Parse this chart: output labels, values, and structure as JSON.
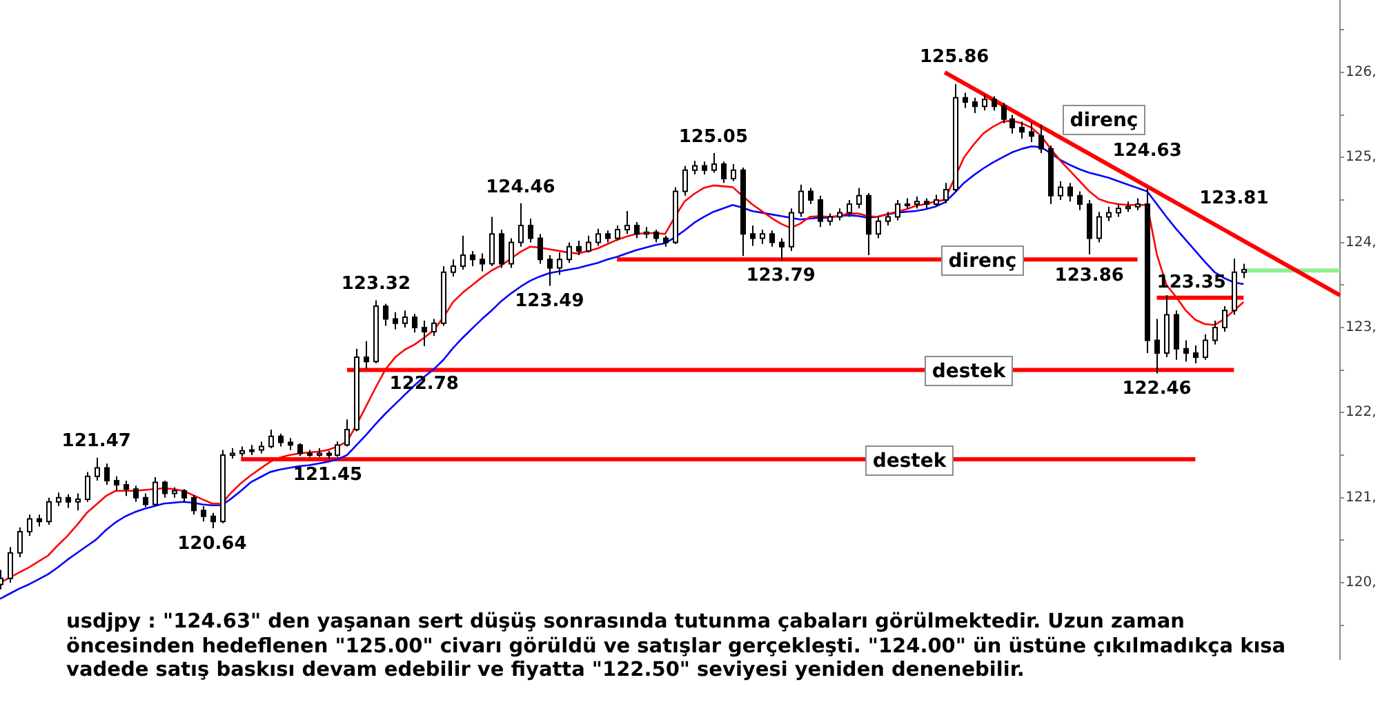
{
  "chart_data": {
    "type": "candlestick",
    "categories": [
      null,
      null,
      null,
      null,
      null,
      null,
      null,
      null,
      null,
      null,
      null,
      null,
      null,
      null,
      null,
      null,
      null,
      null,
      null,
      null,
      null,
      null,
      null,
      null,
      null,
      null,
      null,
      null,
      null,
      null,
      null,
      null,
      null,
      null,
      null,
      null,
      null,
      null,
      null,
      null,
      null,
      null,
      null,
      null,
      null,
      null,
      null,
      null,
      null,
      null,
      null,
      null,
      null,
      null,
      null,
      null,
      null,
      null,
      null,
      null,
      null,
      null,
      null,
      null,
      null,
      null,
      null,
      null,
      null,
      null,
      null,
      null,
      null,
      null,
      null,
      null,
      null,
      null,
      null,
      null,
      null,
      null,
      null,
      null,
      null,
      null,
      null,
      null,
      null,
      null,
      null,
      null,
      null,
      null,
      null,
      null,
      null,
      null,
      null,
      null,
      null,
      null,
      null,
      null,
      null,
      null,
      null,
      null,
      null,
      null,
      null,
      null,
      null,
      null,
      null,
      null,
      null,
      null,
      null,
      null,
      null,
      null,
      null,
      null,
      null,
      null,
      null,
      null,
      null,
      null,
      null,
      null,
      null,
      null,
      null,
      null,
      null,
      null,
      null,
      null
    ],
    "ohlc": [
      [
        119.98,
        120.15,
        119.92,
        120.05
      ],
      [
        120.05,
        120.42,
        120.0,
        120.35
      ],
      [
        120.35,
        120.65,
        120.3,
        120.6
      ],
      [
        120.6,
        120.8,
        120.55,
        120.75
      ],
      [
        120.75,
        120.8,
        120.66,
        120.72
      ],
      [
        120.72,
        121.0,
        120.68,
        120.95
      ],
      [
        120.95,
        121.06,
        120.9,
        121.0
      ],
      [
        121.0,
        121.04,
        120.88,
        120.95
      ],
      [
        120.95,
        121.05,
        120.85,
        120.98
      ],
      [
        120.98,
        121.3,
        120.95,
        121.25
      ],
      [
        121.25,
        121.47,
        121.2,
        121.35
      ],
      [
        121.35,
        121.4,
        121.15,
        121.2
      ],
      [
        121.2,
        121.25,
        121.08,
        121.15
      ],
      [
        121.15,
        121.2,
        121.02,
        121.1
      ],
      [
        121.1,
        121.14,
        120.95,
        121.0
      ],
      [
        121.0,
        121.05,
        120.89,
        120.92
      ],
      [
        120.92,
        121.24,
        120.9,
        121.18
      ],
      [
        121.18,
        121.2,
        121.0,
        121.05
      ],
      [
        121.05,
        121.12,
        121.0,
        121.08
      ],
      [
        121.08,
        121.1,
        120.95,
        121.0
      ],
      [
        121.0,
        121.03,
        120.8,
        120.85
      ],
      [
        120.85,
        120.9,
        120.72,
        120.78
      ],
      [
        120.78,
        120.82,
        120.64,
        120.72
      ],
      [
        120.72,
        121.56,
        120.7,
        121.5
      ],
      [
        121.5,
        121.58,
        121.46,
        121.52
      ],
      [
        121.52,
        121.6,
        121.48,
        121.55
      ],
      [
        121.55,
        121.62,
        121.5,
        121.56
      ],
      [
        121.56,
        121.66,
        121.52,
        121.6
      ],
      [
        121.6,
        121.8,
        121.58,
        121.72
      ],
      [
        121.72,
        121.75,
        121.6,
        121.65
      ],
      [
        121.65,
        121.7,
        121.56,
        121.62
      ],
      [
        121.62,
        121.64,
        121.49,
        121.52
      ],
      [
        121.52,
        121.56,
        121.48,
        121.5
      ],
      [
        121.5,
        121.58,
        121.48,
        121.52
      ],
      [
        121.52,
        121.55,
        121.45,
        121.5
      ],
      [
        121.5,
        121.66,
        121.48,
        121.62
      ],
      [
        121.62,
        121.92,
        121.6,
        121.8
      ],
      [
        121.8,
        122.75,
        121.78,
        122.65
      ],
      [
        122.65,
        122.84,
        122.52,
        122.6
      ],
      [
        122.6,
        123.32,
        122.58,
        123.25
      ],
      [
        123.25,
        123.28,
        123.02,
        123.1
      ],
      [
        123.1,
        123.18,
        122.98,
        123.05
      ],
      [
        123.05,
        123.2,
        123.0,
        123.12
      ],
      [
        123.12,
        123.16,
        122.94,
        123.0
      ],
      [
        123.0,
        123.08,
        122.78,
        122.95
      ],
      [
        122.95,
        123.1,
        122.9,
        123.05
      ],
      [
        123.05,
        123.72,
        123.02,
        123.65
      ],
      [
        123.65,
        123.8,
        123.6,
        123.72
      ],
      [
        123.72,
        124.08,
        123.68,
        123.85
      ],
      [
        123.85,
        123.9,
        123.72,
        123.8
      ],
      [
        123.8,
        123.87,
        123.66,
        123.75
      ],
      [
        123.75,
        124.3,
        123.72,
        124.1
      ],
      [
        124.1,
        124.15,
        123.7,
        123.75
      ],
      [
        123.75,
        124.05,
        123.7,
        124.0
      ],
      [
        124.0,
        124.46,
        123.95,
        124.2
      ],
      [
        124.2,
        124.28,
        124.0,
        124.05
      ],
      [
        124.05,
        124.1,
        123.75,
        123.8
      ],
      [
        123.8,
        123.85,
        123.49,
        123.7
      ],
      [
        123.7,
        123.88,
        123.62,
        123.8
      ],
      [
        123.8,
        124.0,
        123.76,
        123.95
      ],
      [
        123.95,
        124.02,
        123.85,
        123.9
      ],
      [
        123.9,
        124.08,
        123.88,
        124.0
      ],
      [
        124.0,
        124.16,
        123.96,
        124.1
      ],
      [
        124.1,
        124.14,
        124.0,
        124.05
      ],
      [
        124.05,
        124.2,
        124.02,
        124.15
      ],
      [
        124.15,
        124.37,
        124.1,
        124.2
      ],
      [
        124.2,
        124.24,
        124.05,
        124.1
      ],
      [
        124.1,
        124.18,
        124.05,
        124.12
      ],
      [
        124.12,
        124.15,
        124.0,
        124.05
      ],
      [
        124.05,
        124.08,
        123.95,
        124.0
      ],
      [
        124.0,
        124.65,
        123.98,
        124.6
      ],
      [
        124.6,
        124.9,
        124.55,
        124.85
      ],
      [
        124.85,
        124.96,
        124.8,
        124.9
      ],
      [
        124.9,
        124.95,
        124.8,
        124.85
      ],
      [
        124.85,
        125.05,
        124.82,
        124.92
      ],
      [
        124.92,
        124.95,
        124.7,
        124.75
      ],
      [
        124.75,
        124.92,
        124.72,
        124.85
      ],
      [
        124.85,
        124.88,
        123.84,
        124.1
      ],
      [
        124.1,
        124.2,
        123.96,
        124.05
      ],
      [
        124.05,
        124.15,
        123.98,
        124.1
      ],
      [
        124.1,
        124.14,
        123.95,
        124.0
      ],
      [
        124.0,
        124.05,
        123.79,
        123.95
      ],
      [
        123.95,
        124.4,
        123.9,
        124.35
      ],
      [
        124.35,
        124.68,
        124.3,
        124.6
      ],
      [
        124.6,
        124.64,
        124.45,
        124.5
      ],
      [
        124.5,
        124.55,
        124.18,
        124.25
      ],
      [
        124.25,
        124.34,
        124.2,
        124.3
      ],
      [
        124.3,
        124.4,
        124.26,
        124.35
      ],
      [
        124.35,
        124.5,
        124.3,
        124.45
      ],
      [
        124.45,
        124.64,
        124.4,
        124.55
      ],
      [
        124.55,
        124.58,
        123.85,
        124.1
      ],
      [
        124.1,
        124.3,
        124.05,
        124.25
      ],
      [
        124.25,
        124.36,
        124.2,
        124.3
      ],
      [
        124.3,
        124.5,
        124.26,
        124.45
      ],
      [
        124.45,
        124.52,
        124.4,
        124.45
      ],
      [
        124.45,
        124.54,
        124.4,
        124.48
      ],
      [
        124.48,
        124.52,
        124.4,
        124.45
      ],
      [
        124.45,
        124.56,
        124.42,
        124.5
      ],
      [
        124.5,
        124.7,
        124.46,
        124.62
      ],
      [
        124.62,
        125.86,
        124.6,
        125.7
      ],
      [
        125.7,
        125.76,
        125.58,
        125.65
      ],
      [
        125.65,
        125.7,
        125.52,
        125.6
      ],
      [
        125.6,
        125.74,
        125.55,
        125.68
      ],
      [
        125.68,
        125.72,
        125.55,
        125.6
      ],
      [
        125.6,
        125.64,
        125.4,
        125.45
      ],
      [
        125.45,
        125.5,
        125.28,
        125.35
      ],
      [
        125.35,
        125.42,
        125.22,
        125.3
      ],
      [
        125.3,
        125.4,
        125.18,
        125.25
      ],
      [
        125.25,
        125.38,
        125.05,
        125.1
      ],
      [
        125.1,
        125.14,
        124.45,
        124.55
      ],
      [
        124.55,
        124.72,
        124.5,
        124.65
      ],
      [
        124.65,
        124.7,
        124.48,
        124.55
      ],
      [
        124.55,
        124.6,
        124.38,
        124.45
      ],
      [
        124.45,
        124.5,
        123.86,
        124.05
      ],
      [
        124.05,
        124.36,
        124.0,
        124.3
      ],
      [
        124.3,
        124.42,
        124.25,
        124.35
      ],
      [
        124.35,
        124.45,
        124.3,
        124.4
      ],
      [
        124.4,
        124.48,
        124.36,
        124.42
      ],
      [
        124.42,
        124.52,
        124.38,
        124.45
      ],
      [
        124.45,
        124.63,
        122.7,
        122.85
      ],
      [
        122.85,
        123.1,
        122.46,
        122.7
      ],
      [
        122.7,
        123.38,
        122.65,
        123.15
      ],
      [
        123.15,
        123.2,
        122.62,
        122.75
      ],
      [
        122.75,
        122.85,
        122.6,
        122.7
      ],
      [
        122.7,
        122.79,
        122.58,
        122.65
      ],
      [
        122.65,
        122.92,
        122.62,
        122.85
      ],
      [
        122.85,
        123.08,
        122.8,
        123.0
      ],
      [
        123.0,
        123.25,
        122.95,
        123.2
      ],
      [
        123.2,
        123.81,
        123.15,
        123.65
      ],
      [
        123.65,
        123.75,
        123.58,
        123.68
      ],
      null,
      null,
      null,
      null,
      null,
      null,
      null,
      null,
      null,
      null
    ],
    "series": [
      {
        "type": "line",
        "color": "#ff0000",
        "values": [
          120.0,
          120.06,
          120.12,
          120.18,
          120.25,
          120.32,
          120.44,
          120.55,
          120.68,
          120.82,
          120.92,
          121.02,
          121.08,
          121.08,
          121.08,
          121.09,
          121.1,
          121.11,
          121.1,
          121.08,
          121.03,
          120.98,
          120.93,
          120.93,
          121.06,
          121.17,
          121.26,
          121.34,
          121.42,
          121.47,
          121.5,
          121.52,
          121.53,
          121.54,
          121.56,
          121.6,
          121.66,
          121.86,
          122.08,
          122.3,
          122.51,
          122.65,
          122.74,
          122.8,
          122.88,
          122.97,
          123.12,
          123.3,
          123.41,
          123.5,
          123.59,
          123.67,
          123.73,
          123.81,
          123.89,
          123.95,
          123.94,
          123.92,
          123.9,
          123.88,
          123.87,
          123.9,
          123.93,
          123.98,
          124.03,
          124.07,
          124.1,
          124.11,
          124.11,
          124.1,
          124.3,
          124.48,
          124.57,
          124.64,
          124.67,
          124.66,
          124.65,
          124.55,
          124.45,
          124.37,
          124.29,
          124.22,
          124.17,
          124.22,
          124.3,
          124.31,
          124.3,
          124.31,
          124.34,
          124.34,
          124.31,
          124.3,
          124.33,
          124.36,
          124.39,
          124.43,
          124.45,
          124.48,
          124.5,
          124.75,
          125.0,
          125.15,
          125.28,
          125.36,
          125.42,
          125.43,
          125.4,
          125.35,
          125.25,
          125.1,
          124.96,
          124.84,
          124.72,
          124.6,
          124.51,
          124.47,
          124.45,
          124.44,
          124.44,
          124.44,
          123.86,
          123.5,
          123.36,
          123.2,
          123.09,
          123.04,
          123.03,
          123.1,
          123.2,
          123.3,
          null,
          null,
          null,
          null,
          null,
          null,
          null,
          null,
          null,
          null
        ]
      },
      {
        "type": "line",
        "color": "#0000ff",
        "values": [
          119.81,
          119.87,
          119.93,
          119.98,
          120.04,
          120.1,
          120.18,
          120.27,
          120.35,
          120.43,
          120.51,
          120.62,
          120.71,
          120.78,
          120.83,
          120.87,
          120.9,
          120.93,
          120.94,
          120.95,
          120.94,
          120.92,
          120.91,
          120.91,
          120.99,
          121.08,
          121.18,
          121.24,
          121.3,
          121.33,
          121.35,
          121.37,
          121.38,
          121.4,
          121.42,
          121.45,
          121.5,
          121.62,
          121.74,
          121.87,
          121.99,
          122.1,
          122.21,
          122.32,
          122.42,
          122.51,
          122.62,
          122.76,
          122.88,
          122.99,
          123.1,
          123.2,
          123.31,
          123.4,
          123.48,
          123.55,
          123.6,
          123.64,
          123.66,
          123.68,
          123.7,
          123.73,
          123.76,
          123.8,
          123.83,
          123.87,
          123.91,
          123.94,
          123.97,
          123.99,
          124.06,
          124.14,
          124.23,
          124.3,
          124.36,
          124.4,
          124.44,
          124.41,
          124.37,
          124.35,
          124.33,
          124.31,
          124.29,
          124.27,
          124.28,
          124.29,
          124.29,
          124.31,
          124.32,
          124.31,
          124.29,
          124.3,
          124.33,
          124.35,
          124.36,
          124.37,
          124.39,
          124.42,
          124.47,
          124.58,
          124.7,
          124.79,
          124.87,
          124.94,
          125.0,
          125.06,
          125.1,
          125.13,
          125.12,
          125.05,
          124.97,
          124.91,
          124.86,
          124.82,
          124.79,
          124.76,
          124.72,
          124.68,
          124.64,
          124.6,
          124.45,
          124.3,
          124.16,
          124.03,
          123.9,
          123.77,
          123.65,
          123.58,
          123.53,
          123.51,
          null,
          null,
          null,
          null,
          null,
          null,
          null,
          null,
          null,
          null
        ]
      },
      {
        "type": "line",
        "name": "direnç",
        "color": "#ff0000",
        "values": [
          null,
          null,
          null,
          null,
          null,
          null,
          null,
          null,
          null,
          null,
          null,
          null,
          null,
          null,
          null,
          null,
          null,
          null,
          null,
          null,
          null,
          null,
          null,
          null,
          null,
          null,
          null,
          null,
          null,
          null,
          null,
          null,
          null,
          null,
          null,
          null,
          null,
          null,
          null,
          null,
          null,
          null,
          null,
          null,
          null,
          null,
          null,
          null,
          null,
          null,
          null,
          null,
          null,
          null,
          null,
          null,
          null,
          null,
          null,
          null,
          null,
          null,
          null,
          null,
          123.8,
          null,
          null,
          null,
          null,
          null,
          null,
          null,
          null,
          null,
          null,
          null,
          null,
          null,
          null,
          null,
          null,
          null,
          null,
          null,
          null,
          null,
          null,
          null,
          null,
          null,
          null,
          null,
          null,
          null,
          null,
          null,
          null,
          null,
          null,
          null,
          null,
          null,
          null,
          null,
          null,
          null,
          null,
          null,
          null,
          null,
          null,
          null,
          null,
          null,
          null,
          null,
          null,
          null,
          123.8,
          null,
          null,
          null,
          null,
          null,
          null,
          null,
          null,
          null,
          null,
          null,
          null,
          null,
          null,
          null,
          null,
          null,
          null,
          null,
          null,
          null
        ]
      },
      {
        "type": "line",
        "name": "destek",
        "color": "#ff0000",
        "values": [
          null,
          null,
          null,
          null,
          null,
          null,
          null,
          null,
          null,
          null,
          null,
          null,
          null,
          null,
          null,
          null,
          null,
          null,
          null,
          null,
          null,
          null,
          null,
          null,
          null,
          null,
          null,
          null,
          null,
          null,
          null,
          null,
          null,
          null,
          null,
          null,
          122.5,
          null,
          null,
          null,
          null,
          null,
          null,
          null,
          null,
          null,
          null,
          null,
          null,
          null,
          null,
          null,
          null,
          null,
          null,
          null,
          null,
          null,
          null,
          null,
          null,
          null,
          null,
          null,
          null,
          null,
          null,
          null,
          null,
          null,
          null,
          null,
          null,
          null,
          null,
          null,
          null,
          null,
          null,
          null,
          null,
          null,
          null,
          null,
          null,
          null,
          null,
          null,
          null,
          null,
          null,
          null,
          null,
          null,
          null,
          null,
          null,
          null,
          null,
          null,
          null,
          null,
          null,
          null,
          null,
          null,
          null,
          null,
          null,
          null,
          null,
          null,
          null,
          null,
          null,
          null,
          null,
          null,
          null,
          null,
          null,
          null,
          null,
          null,
          null,
          null,
          null,
          null,
          122.5,
          null,
          null,
          null,
          null,
          null,
          null,
          null,
          null,
          null,
          null,
          null
        ]
      },
      {
        "type": "line",
        "name": "destek",
        "color": "#ff0000",
        "values": [
          null,
          null,
          null,
          null,
          null,
          null,
          null,
          null,
          null,
          null,
          null,
          null,
          null,
          null,
          null,
          null,
          null,
          null,
          null,
          null,
          null,
          null,
          null,
          null,
          null,
          121.45,
          null,
          null,
          null,
          null,
          null,
          null,
          null,
          null,
          null,
          null,
          null,
          null,
          null,
          null,
          null,
          null,
          null,
          null,
          null,
          null,
          null,
          null,
          null,
          null,
          null,
          null,
          null,
          null,
          null,
          null,
          null,
          null,
          null,
          null,
          null,
          null,
          null,
          null,
          null,
          null,
          null,
          null,
          null,
          null,
          null,
          null,
          null,
          null,
          null,
          null,
          null,
          null,
          null,
          null,
          null,
          null,
          null,
          null,
          null,
          null,
          null,
          null,
          null,
          null,
          null,
          null,
          null,
          null,
          null,
          null,
          null,
          null,
          null,
          null,
          null,
          null,
          null,
          null,
          null,
          null,
          null,
          null,
          null,
          null,
          null,
          null,
          null,
          null,
          null,
          null,
          null,
          null,
          null,
          null,
          null,
          null,
          null,
          null,
          121.45,
          null,
          null,
          null,
          null,
          null,
          null,
          null,
          null,
          null,
          null,
          null,
          null,
          null,
          null,
          null
        ]
      },
      {
        "type": "line",
        "color": "#ff0000",
        "values": [
          null,
          null,
          null,
          null,
          null,
          null,
          null,
          null,
          null,
          null,
          null,
          null,
          null,
          null,
          null,
          null,
          null,
          null,
          null,
          null,
          null,
          null,
          null,
          null,
          null,
          null,
          null,
          null,
          null,
          null,
          null,
          null,
          null,
          null,
          null,
          null,
          null,
          null,
          null,
          null,
          null,
          null,
          null,
          null,
          null,
          null,
          null,
          null,
          null,
          null,
          null,
          null,
          null,
          null,
          null,
          null,
          null,
          null,
          null,
          null,
          null,
          null,
          null,
          null,
          null,
          null,
          null,
          null,
          null,
          null,
          null,
          null,
          null,
          null,
          null,
          null,
          null,
          null,
          null,
          null,
          null,
          null,
          null,
          null,
          null,
          null,
          null,
          null,
          null,
          null,
          null,
          null,
          null,
          null,
          null,
          null,
          null,
          null,
          null,
          null,
          null,
          null,
          null,
          null,
          null,
          null,
          null,
          null,
          null,
          null,
          null,
          null,
          null,
          null,
          null,
          null,
          null,
          null,
          null,
          null,
          123.35,
          null,
          null,
          null,
          null,
          null,
          null,
          null,
          null,
          123.35,
          null,
          null,
          null,
          null,
          null,
          null,
          null,
          null,
          null,
          null
        ]
      },
      {
        "type": "line",
        "name": "direnç",
        "color": "#ff0000",
        "values": [
          null,
          null,
          null,
          null,
          null,
          null,
          null,
          null,
          null,
          null,
          null,
          null,
          null,
          null,
          null,
          null,
          null,
          null,
          null,
          null,
          null,
          null,
          null,
          null,
          null,
          null,
          null,
          null,
          null,
          null,
          null,
          null,
          null,
          null,
          null,
          null,
          null,
          null,
          null,
          null,
          null,
          null,
          null,
          null,
          null,
          null,
          null,
          null,
          null,
          null,
          null,
          null,
          null,
          null,
          null,
          null,
          null,
          null,
          null,
          null,
          null,
          null,
          null,
          null,
          null,
          null,
          null,
          null,
          null,
          null,
          null,
          null,
          null,
          null,
          null,
          null,
          null,
          null,
          null,
          null,
          null,
          null,
          null,
          null,
          null,
          null,
          null,
          null,
          null,
          null,
          null,
          null,
          null,
          null,
          null,
          null,
          null,
          null,
          126,
          null,
          null,
          null,
          null,
          null,
          null,
          null,
          null,
          null,
          null,
          null,
          null,
          null,
          null,
          null,
          null,
          null,
          null,
          null,
          null,
          null,
          null,
          null,
          null,
          null,
          null,
          null,
          null,
          null,
          null,
          null,
          null,
          null,
          null,
          null,
          null,
          null,
          null,
          null,
          null,
          123.38
        ]
      },
      {
        "type": "line",
        "color": "#90ee90",
        "values": [
          null,
          null,
          null,
          null,
          null,
          null,
          null,
          null,
          null,
          null,
          null,
          null,
          null,
          null,
          null,
          null,
          null,
          null,
          null,
          null,
          null,
          null,
          null,
          null,
          null,
          null,
          null,
          null,
          null,
          null,
          null,
          null,
          null,
          null,
          null,
          null,
          null,
          null,
          null,
          null,
          null,
          null,
          null,
          null,
          null,
          null,
          null,
          null,
          null,
          null,
          null,
          null,
          null,
          null,
          null,
          null,
          null,
          null,
          null,
          null,
          null,
          null,
          null,
          null,
          null,
          null,
          null,
          null,
          null,
          null,
          null,
          null,
          null,
          null,
          null,
          null,
          null,
          null,
          null,
          null,
          null,
          null,
          null,
          null,
          null,
          null,
          null,
          null,
          null,
          null,
          null,
          null,
          null,
          null,
          null,
          null,
          null,
          null,
          null,
          null,
          null,
          null,
          null,
          null,
          null,
          null,
          null,
          null,
          null,
          null,
          null,
          null,
          null,
          null,
          null,
          null,
          null,
          null,
          null,
          null,
          null,
          null,
          null,
          null,
          null,
          null,
          null,
          null,
          null,
          123.67,
          null,
          null,
          null,
          null,
          null,
          null,
          null,
          null,
          null,
          123.67
        ]
      }
    ],
    "ylim": [
      119.1,
      126.85
    ],
    "yticks": [
      {
        "value": 119.5,
        "label": null
      },
      {
        "value": 120,
        "label": "120,"
      },
      {
        "value": 120.5,
        "label": null
      },
      {
        "value": 121,
        "label": "121,"
      },
      {
        "value": 121.5,
        "label": null
      },
      {
        "value": 122,
        "label": "122,"
      },
      {
        "value": 122.5,
        "label": null
      },
      {
        "value": 123,
        "label": "123,"
      },
      {
        "value": 123.5,
        "label": null
      },
      {
        "value": 124,
        "label": "124,"
      },
      {
        "value": 124.5,
        "label": null
      },
      {
        "value": 125,
        "label": "125,"
      },
      {
        "value": 125.5,
        "label": null
      },
      {
        "value": 126,
        "label": "126,"
      },
      {
        "value": 126.5,
        "label": null
      }
    ],
    "tick_labels": "y",
    "annotations": [
      {
        "text": "125.86",
        "y": 125.86
      },
      {
        "text": "125.05",
        "y": 125.05
      },
      {
        "text": "124.46",
        "y": 124.46
      },
      {
        "text": "123.32",
        "y": 123.32
      },
      {
        "text": "121.47",
        "y": 121.47
      },
      {
        "text": "120.64",
        "y": 120.64
      },
      {
        "text": "121.45",
        "y": 121.45
      },
      {
        "text": "122.78",
        "y": 122.78
      },
      {
        "text": "123.49",
        "y": 123.49
      },
      {
        "text": "123.79",
        "y": 123.79
      },
      {
        "text": "123.86",
        "y": 123.86
      },
      {
        "text": "124.63",
        "y": 124.63
      },
      {
        "text": "123.81",
        "y": 123.81
      },
      {
        "text": "123.35",
        "y": 123.35
      },
      {
        "text": "122.46",
        "y": 122.46
      },
      "usdjpy : \"124.63\" den yaşanan sert düşüş sonrasında tutunma çabaları görülmektedir. Uzun zaman öncesinden hedeflenen \"125.00\" civarı görüldü ve satışlar gerçekleşti. \"124.00\" ün üstüne çıkılmadıkça kısa vadede satış baskısı devam edebilir ve fiyatta \"122.50\" seviyesi yeniden denenebilir."
    ]
  }
}
